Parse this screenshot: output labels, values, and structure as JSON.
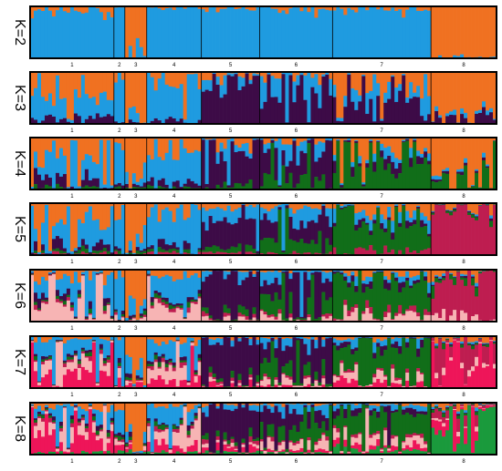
{
  "chart_data": {
    "type": "stacked-bar (admixture / STRUCTURE plot)",
    "cluster_colors": [
      "#f07121",
      "#1f9be0",
      "#3d0b47",
      "#116e19",
      "#be1d50",
      "#f7b4b4",
      "#ee1559",
      "#1a9a3c"
    ],
    "populations": [
      "1",
      "2",
      "3",
      "4",
      "5",
      "6",
      "7",
      "8"
    ],
    "population_widths": [
      68,
      9,
      15,
      45,
      47,
      58,
      78,
      53
    ],
    "panels": [
      {
        "label": "K=2",
        "K": 2,
        "population_profiles": [
          [
            0.12,
            0.88
          ],
          [
            0.2,
            0.8
          ],
          [
            0.75,
            0.25
          ],
          [
            0.04,
            0.96
          ],
          [
            0.05,
            0.95
          ],
          [
            0.06,
            0.94
          ],
          [
            0.08,
            0.92
          ],
          [
            0.95,
            0.05
          ]
        ]
      },
      {
        "label": "K=3",
        "K": 3,
        "population_profiles": [
          [
            0.45,
            0.4,
            0.15
          ],
          [
            0.2,
            0.7,
            0.1
          ],
          [
            0.8,
            0.15,
            0.05
          ],
          [
            0.25,
            0.65,
            0.1
          ],
          [
            0.15,
            0.25,
            0.6
          ],
          [
            0.1,
            0.4,
            0.5
          ],
          [
            0.35,
            0.25,
            0.4
          ],
          [
            0.8,
            0.05,
            0.15
          ]
        ]
      },
      {
        "label": "K=4",
        "K": 4,
        "population_profiles": [
          [
            0.45,
            0.35,
            0.15,
            0.05
          ],
          [
            0.2,
            0.7,
            0.05,
            0.05
          ],
          [
            0.75,
            0.15,
            0.05,
            0.05
          ],
          [
            0.25,
            0.6,
            0.1,
            0.05
          ],
          [
            0.15,
            0.2,
            0.55,
            0.1
          ],
          [
            0.1,
            0.25,
            0.4,
            0.25
          ],
          [
            0.3,
            0.15,
            0.15,
            0.4
          ],
          [
            0.6,
            0.05,
            0.05,
            0.3
          ]
        ]
      },
      {
        "label": "K=5",
        "K": 5,
        "population_profiles": [
          [
            0.4,
            0.35,
            0.15,
            0.05,
            0.05
          ],
          [
            0.2,
            0.65,
            0.05,
            0.05,
            0.05
          ],
          [
            0.7,
            0.2,
            0.05,
            0.03,
            0.02
          ],
          [
            0.2,
            0.6,
            0.1,
            0.05,
            0.05
          ],
          [
            0.1,
            0.2,
            0.55,
            0.1,
            0.05
          ],
          [
            0.1,
            0.25,
            0.35,
            0.25,
            0.05
          ],
          [
            0.2,
            0.15,
            0.1,
            0.45,
            0.1
          ],
          [
            0.15,
            0.03,
            0.02,
            0.05,
            0.75
          ]
        ]
      },
      {
        "label": "K=6",
        "K": 6,
        "population_profiles": [
          [
            0.2,
            0.3,
            0.1,
            0.05,
            0.05,
            0.3
          ],
          [
            0.15,
            0.6,
            0.05,
            0.05,
            0.05,
            0.1
          ],
          [
            0.55,
            0.3,
            0.05,
            0.03,
            0.02,
            0.05
          ],
          [
            0.15,
            0.4,
            0.05,
            0.05,
            0.05,
            0.3
          ],
          [
            0.05,
            0.1,
            0.6,
            0.1,
            0.05,
            0.1
          ],
          [
            0.05,
            0.2,
            0.3,
            0.3,
            0.05,
            0.1
          ],
          [
            0.1,
            0.1,
            0.1,
            0.45,
            0.1,
            0.15
          ],
          [
            0.1,
            0.03,
            0.02,
            0.1,
            0.6,
            0.15
          ]
        ]
      },
      {
        "label": "K=7",
        "K": 7,
        "population_profiles": [
          [
            0.1,
            0.25,
            0.05,
            0.05,
            0.05,
            0.2,
            0.3
          ],
          [
            0.1,
            0.55,
            0.05,
            0.05,
            0.05,
            0.1,
            0.1
          ],
          [
            0.5,
            0.25,
            0.05,
            0.03,
            0.02,
            0.05,
            0.1
          ],
          [
            0.1,
            0.35,
            0.05,
            0.05,
            0.05,
            0.25,
            0.15
          ],
          [
            0.05,
            0.1,
            0.55,
            0.1,
            0.05,
            0.05,
            0.1
          ],
          [
            0.05,
            0.15,
            0.3,
            0.25,
            0.05,
            0.15,
            0.05
          ],
          [
            0.05,
            0.1,
            0.1,
            0.4,
            0.05,
            0.15,
            0.15
          ],
          [
            0.1,
            0.03,
            0.02,
            0.05,
            0.35,
            0.1,
            0.35
          ]
        ]
      },
      {
        "label": "K=8",
        "K": 8,
        "population_profiles": [
          [
            0.1,
            0.2,
            0.05,
            0.05,
            0.05,
            0.2,
            0.3,
            0.05
          ],
          [
            0.1,
            0.5,
            0.05,
            0.05,
            0.05,
            0.1,
            0.1,
            0.05
          ],
          [
            0.5,
            0.25,
            0.05,
            0.03,
            0.02,
            0.05,
            0.05,
            0.05
          ],
          [
            0.1,
            0.3,
            0.05,
            0.05,
            0.05,
            0.25,
            0.15,
            0.05
          ],
          [
            0.05,
            0.1,
            0.5,
            0.1,
            0.05,
            0.05,
            0.1,
            0.05
          ],
          [
            0.05,
            0.15,
            0.25,
            0.25,
            0.05,
            0.15,
            0.05,
            0.05
          ],
          [
            0.05,
            0.1,
            0.1,
            0.35,
            0.05,
            0.15,
            0.1,
            0.1
          ],
          [
            0.1,
            0.03,
            0.02,
            0.05,
            0.15,
            0.05,
            0.2,
            0.4
          ]
        ]
      }
    ]
  }
}
